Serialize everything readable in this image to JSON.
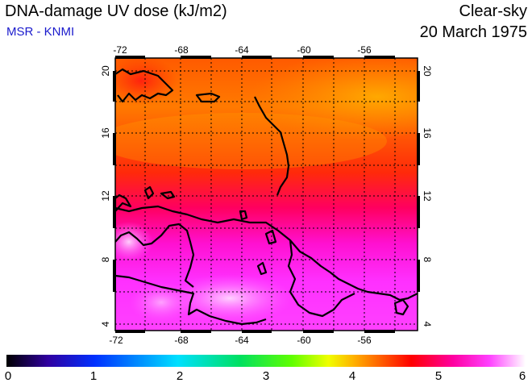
{
  "header": {
    "title": "DNA-damage UV dose (kJ/m2)",
    "subtitle": "MSR - KNMI",
    "sky": "Clear-sky",
    "date": "20 March 1975"
  },
  "map": {
    "lon_ticks": [
      "-72",
      "-68",
      "-64",
      "-60",
      "-56"
    ],
    "lat_ticks": [
      "4",
      "8",
      "12",
      "16",
      "20"
    ]
  },
  "colorbar": {
    "labels": [
      "0",
      "1",
      "2",
      "3",
      "4",
      "5",
      "6"
    ],
    "colors": [
      "#000000",
      "#3000a0",
      "#0030ff",
      "#00c8ff",
      "#00e060",
      "#60ff00",
      "#f0ff00",
      "#ffb000",
      "#ff6000",
      "#ff0000",
      "#ff00a0",
      "#ff40ff",
      "#ffffff"
    ]
  }
}
